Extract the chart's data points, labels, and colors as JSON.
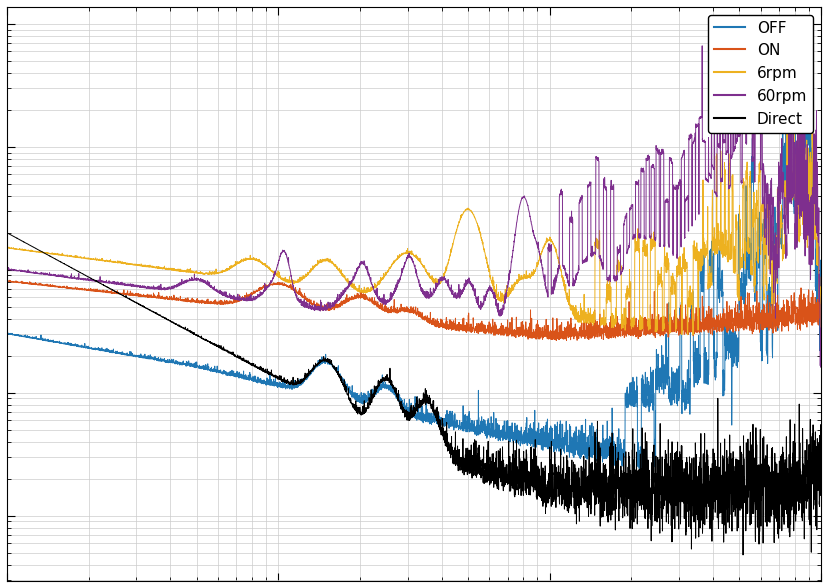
{
  "title": "",
  "xlabel": "",
  "ylabel": "",
  "xlim": [
    1,
    1000
  ],
  "background_color": "#ffffff",
  "grid_color": "#cccccc",
  "legend_labels": [
    "OFF",
    "ON",
    "6rpm",
    "60rpm",
    "Direct"
  ],
  "line_colors": [
    "#1f77b4",
    "#d95319",
    "#edb120",
    "#7e2f8e",
    "#000000"
  ],
  "seed": 42,
  "n_points": 5000
}
